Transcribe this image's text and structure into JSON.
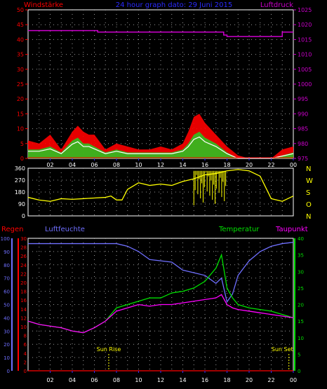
{
  "header": {
    "left_title": "Windstärke",
    "center_title": "24 hour graph dato: 29 Juni 2015",
    "right_title": "Luftdruck"
  },
  "colors": {
    "background": "#000000",
    "grid": "#9a9a9a",
    "wind_avg": "#ffffff",
    "wind_gust": "#ff0000",
    "wind_fill": "#22cc22",
    "pressure": "#cc00cc",
    "direction": "#ffff00",
    "rain": "#ff0000",
    "humidity": "#6f6fff",
    "temperature": "#00e000",
    "dewpoint": "#ff00ff",
    "sun": "#ffff00",
    "x_ticks": "#3333ff"
  },
  "x_axis": {
    "tick_labels": [
      "02",
      "04",
      "06",
      "08",
      "10",
      "12",
      "14",
      "16",
      "18",
      "20",
      "22",
      "00"
    ]
  },
  "chart_data": [
    {
      "type": "area",
      "panel": "wind_pressure",
      "title": "24 hour graph dato: 29 Juni 2015",
      "ylabel_left": "Windstärke",
      "ylabel_right": "Luftdruck",
      "y_left_ticks": [
        "0",
        "5",
        "10",
        "15",
        "20",
        "25",
        "30",
        "35",
        "40",
        "45",
        "50"
      ],
      "y_right_ticks": [
        "975",
        "980",
        "985",
        "990",
        "995",
        "1000",
        "1005",
        "1010",
        "1015",
        "1020",
        "1025"
      ],
      "ylim_left": [
        0,
        50
      ],
      "ylim_right": [
        975,
        1025
      ],
      "grid": true,
      "x_hours": [
        0,
        1,
        2,
        3,
        4,
        4.5,
        5,
        5.5,
        6,
        7,
        8,
        9,
        10,
        11,
        12,
        13,
        14,
        14.5,
        15,
        15.5,
        16,
        16.5,
        17,
        18,
        19,
        20,
        21,
        22,
        23,
        24
      ],
      "series": [
        {
          "name": "Windstärke",
          "role": "gust",
          "values": [
            6,
            5,
            8,
            3,
            9,
            11,
            9,
            8,
            8,
            3,
            5,
            4,
            3,
            3,
            4,
            3,
            5,
            9,
            14,
            15,
            12,
            10,
            8,
            4,
            1,
            0,
            0,
            0,
            3,
            4
          ]
        },
        {
          "name": "Windstärke",
          "role": "avg",
          "values": [
            3,
            3,
            4,
            2,
            6,
            7,
            5,
            5,
            4,
            2,
            3,
            2,
            2,
            2,
            2,
            2,
            3,
            5,
            8,
            9,
            7,
            6,
            5,
            2,
            0,
            0,
            0,
            0,
            1,
            2
          ]
        },
        {
          "name": "Luftdruck",
          "role": "pressure",
          "x_hours": [
            0,
            6.3,
            6.3,
            17.7,
            17.7,
            18,
            18,
            23,
            23,
            24
          ],
          "values": [
            1018,
            1018,
            1017.5,
            1017.5,
            1016.5,
            1016.5,
            1016,
            1016,
            1017.5,
            1017.5
          ]
        }
      ]
    },
    {
      "type": "line",
      "panel": "wind_direction",
      "y_ticks": [
        "360",
        "270",
        "180",
        "90",
        "0"
      ],
      "ylim": [
        0,
        360
      ],
      "compass_labels": [
        "N",
        "W",
        "S",
        "O",
        "N"
      ],
      "grid": true,
      "series": [
        {
          "name": "direction",
          "x_hours": [
            0,
            1,
            2,
            3,
            4,
            5,
            6,
            7,
            7.5,
            8,
            8.5,
            9,
            10,
            11,
            12,
            13,
            14,
            15,
            16,
            17,
            18,
            19,
            20,
            21,
            22,
            23,
            24
          ],
          "values": [
            140,
            120,
            110,
            130,
            125,
            130,
            135,
            140,
            150,
            120,
            120,
            200,
            250,
            230,
            240,
            230,
            260,
            280,
            310,
            320,
            340,
            350,
            340,
            300,
            130,
            110,
            150
          ]
        }
      ]
    },
    {
      "type": "line",
      "panel": "climate",
      "legend": [
        "Regen",
        "Luftfeuchte",
        "Temperatur",
        "Taupunkt"
      ],
      "y_ticks_humidity": [
        "0",
        "10",
        "20",
        "30",
        "40",
        "50",
        "60",
        "70",
        "80",
        "90",
        "100"
      ],
      "y_ticks_rain": [
        "0",
        "2",
        "4",
        "6",
        "8",
        "10",
        "12",
        "14",
        "16",
        "18",
        "20",
        "22",
        "24",
        "26",
        "28",
        "30"
      ],
      "y_ticks_temp": [
        "0",
        "5",
        "10",
        "15",
        "20",
        "25",
        "30",
        "35",
        "40"
      ],
      "ylim_humidity": [
        0,
        100
      ],
      "ylim_temp": [
        0,
        40
      ],
      "ylim_rain": [
        0,
        30
      ],
      "grid": true,
      "x_hours": [
        0,
        1,
        2,
        3,
        4,
        5,
        6,
        7,
        8,
        9,
        10,
        11,
        12,
        13,
        14,
        15,
        16,
        17,
        17.5,
        18,
        18.5,
        19,
        20,
        21,
        22,
        23,
        24
      ],
      "series": [
        {
          "name": "Luftfeuchte",
          "values": [
            96,
            96,
            96,
            96,
            96,
            96,
            96,
            96,
            96,
            94,
            90,
            84,
            83,
            82,
            76,
            74,
            72,
            66,
            70,
            52,
            58,
            72,
            83,
            90,
            94,
            96,
            97
          ]
        },
        {
          "name": "Temperatur",
          "values": [
            15,
            14,
            13.5,
            13,
            12,
            11.5,
            13,
            15,
            19,
            20,
            21,
            22,
            22,
            23.5,
            24,
            25,
            27,
            31,
            35,
            25,
            22,
            20,
            19,
            18.5,
            18,
            17,
            16
          ]
        },
        {
          "name": "Taupunkt",
          "values": [
            15,
            14,
            13.5,
            13,
            12,
            11.5,
            13,
            15,
            18,
            19,
            20,
            19.5,
            20,
            20,
            20.5,
            21,
            21.5,
            22,
            23,
            20,
            19,
            18.5,
            18,
            17.5,
            17,
            16.5,
            16
          ]
        },
        {
          "name": "Regen",
          "values": [
            0,
            0,
            0,
            0,
            0,
            0,
            0,
            0,
            0,
            0,
            0,
            0,
            0,
            0,
            0,
            0,
            0,
            0,
            0,
            0,
            0,
            0,
            0,
            0,
            0,
            0,
            0
          ]
        }
      ],
      "annotations": [
        {
          "label": "Sun Rise",
          "x_hour": 7.3
        },
        {
          "label": "Sun Set",
          "x_hour": 23.6
        }
      ]
    }
  ]
}
